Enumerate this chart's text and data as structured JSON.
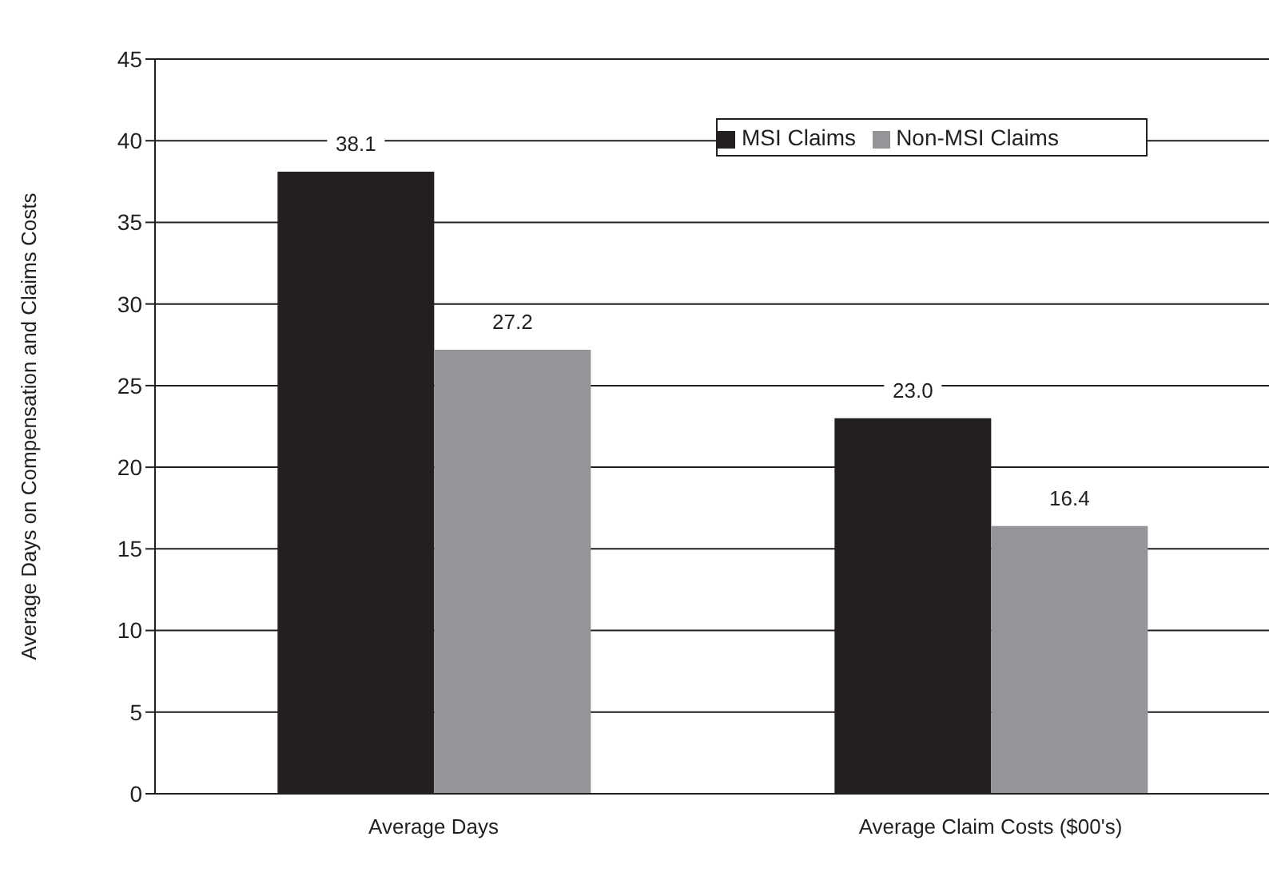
{
  "chart_data": {
    "type": "bar",
    "ylabel": "Average Days on Compensation and Claims Costs",
    "categories": [
      "Average Days",
      "Average Claim Costs ($00's)"
    ],
    "series": [
      {
        "name": "MSI Claims",
        "color": "#231f20",
        "values": [
          38.1,
          23.0
        ],
        "value_labels": [
          "38.1",
          "23.0"
        ]
      },
      {
        "name": "Non-MSI Claims",
        "color": "#939598",
        "values": [
          27.2,
          16.4
        ],
        "value_labels": [
          "27.2",
          "16.4"
        ]
      }
    ],
    "ylim": [
      0,
      45
    ],
    "yticks": [
      0,
      5,
      10,
      15,
      20,
      25,
      30,
      35,
      40,
      45
    ],
    "grid": "y",
    "legend": "top right"
  }
}
